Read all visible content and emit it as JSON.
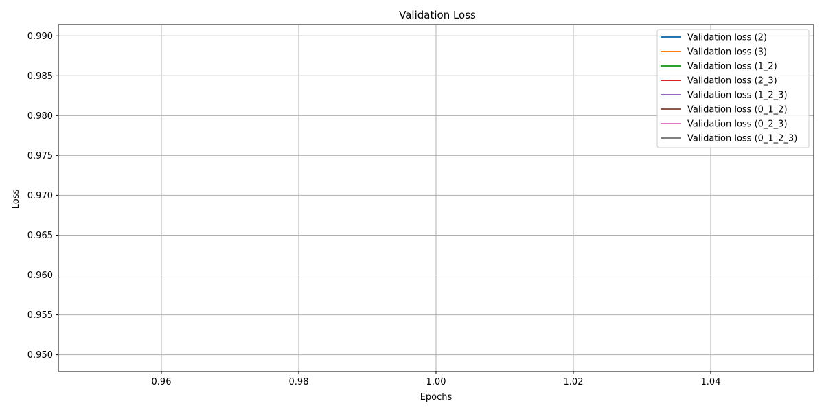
{
  "chart_data": {
    "type": "line",
    "title": "Validation Loss",
    "xlabel": "Epochs",
    "ylabel": "Loss",
    "xlim": [
      0.945,
      1.055
    ],
    "ylim": [
      0.9479,
      0.9914
    ],
    "xticks": [
      0.96,
      0.98,
      1.0,
      1.02,
      1.04
    ],
    "xtick_labels": [
      "0.96",
      "0.98",
      "1.00",
      "1.02",
      "1.04"
    ],
    "yticks": [
      0.95,
      0.955,
      0.96,
      0.965,
      0.97,
      0.975,
      0.98,
      0.985,
      0.99
    ],
    "ytick_labels": [
      "0.950",
      "0.955",
      "0.960",
      "0.965",
      "0.970",
      "0.975",
      "0.980",
      "0.985",
      "0.990"
    ],
    "grid": true,
    "legend_position": "top-right",
    "series": [
      {
        "name": "Validation loss (2)",
        "color": "#1f77b4",
        "x": [],
        "y": []
      },
      {
        "name": "Validation loss (3)",
        "color": "#ff7f0e",
        "x": [],
        "y": []
      },
      {
        "name": "Validation loss (1_2)",
        "color": "#2ca02c",
        "x": [],
        "y": []
      },
      {
        "name": "Validation loss (2_3)",
        "color": "#d62728",
        "x": [],
        "y": []
      },
      {
        "name": "Validation loss (1_2_3)",
        "color": "#9467bd",
        "x": [],
        "y": []
      },
      {
        "name": "Validation loss (0_1_2)",
        "color": "#8c564b",
        "x": [],
        "y": []
      },
      {
        "name": "Validation loss (0_2_3)",
        "color": "#e377c2",
        "x": [],
        "y": []
      },
      {
        "name": "Validation loss (0_1_2_3)",
        "color": "#7f7f7f",
        "x": [],
        "y": []
      }
    ]
  }
}
